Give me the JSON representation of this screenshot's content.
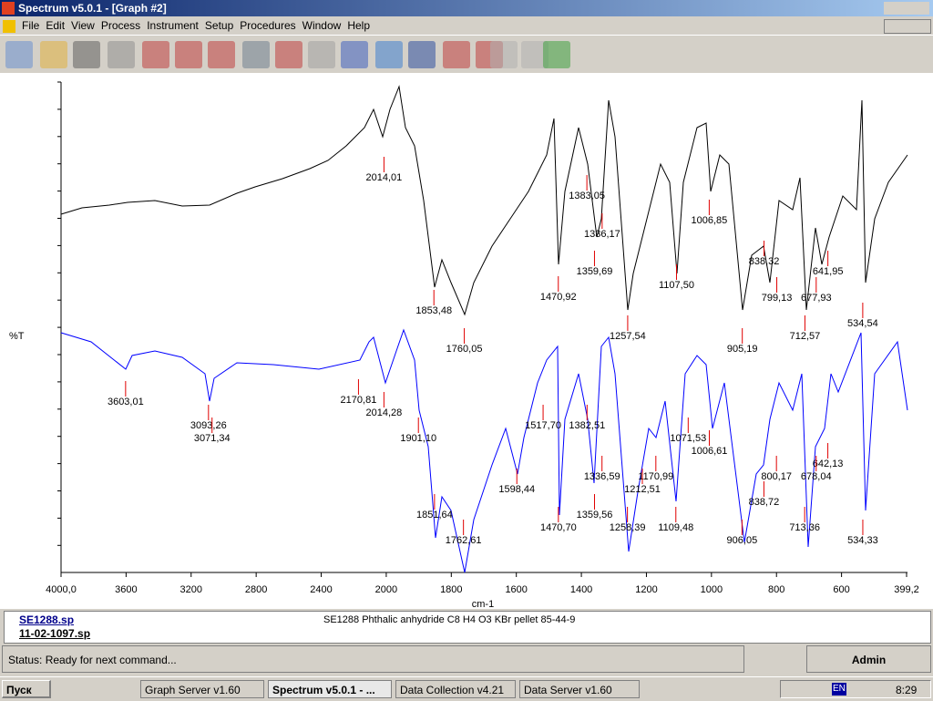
{
  "window": {
    "title": "Spectrum v5.0.1 - [Graph #2]"
  },
  "menu": [
    "File",
    "Edit",
    "View",
    "Process",
    "Instrument",
    "Setup",
    "Procedures",
    "Window",
    "Help"
  ],
  "chart_data": {
    "type": "line",
    "y_label": "%T",
    "x_label": "cm-1",
    "xlim": [
      4000,
      399.2
    ],
    "xticks": [
      {
        "value": 4000,
        "label": "4000,0"
      },
      3600,
      3200,
      2800,
      2400,
      2000,
      1800,
      1600,
      1400,
      1200,
      1000,
      800,
      600,
      {
        "value": 399.2,
        "label": "399,2"
      }
    ],
    "series": [
      {
        "color": "#000000",
        "peaks": [
          {
            "value": 2014.01,
            "label": "2014,01"
          },
          {
            "value": 1853.48,
            "label": "1853,48"
          },
          {
            "value": 1760.05,
            "label": "1760,05"
          },
          {
            "value": 1470.92,
            "label": "1470,92"
          },
          {
            "value": 1383.05,
            "label": "1383,05"
          },
          {
            "value": 1336.17,
            "label": "1336,17"
          },
          {
            "value": 1359.69,
            "label": "1359,69"
          },
          {
            "value": 1257.54,
            "label": "1257,54"
          },
          {
            "value": 1107.5,
            "label": "1107,50"
          },
          {
            "value": 1006.85,
            "label": "1006,85"
          },
          {
            "value": 905.19,
            "label": "905,19"
          },
          {
            "value": 838.32,
            "label": "838,32"
          },
          {
            "value": 799.13,
            "label": "799,13"
          },
          {
            "value": 677.93,
            "label": "677,93"
          },
          {
            "value": 641.95,
            "label": "641,95"
          },
          {
            "value": 712.57,
            "label": "712,57"
          },
          {
            "value": 534.54,
            "label": "534,54"
          }
        ]
      },
      {
        "color": "#0000ff",
        "peaks": [
          {
            "value": 3603.01,
            "label": "3603,01"
          },
          {
            "value": 3093.26,
            "label": "3093,26"
          },
          {
            "value": 3071.34,
            "label": "3071,34"
          },
          {
            "value": 2170.81,
            "label": "2170,81"
          },
          {
            "value": 2014.28,
            "label": "2014,28"
          },
          {
            "value": 1901.1,
            "label": "1901,10"
          },
          {
            "value": 1517.7,
            "label": "1517,70"
          },
          {
            "value": 1382.51,
            "label": "1382,51"
          },
          {
            "value": 1598.44,
            "label": "1598,44"
          },
          {
            "value": 1071.53,
            "label": "1071,53"
          },
          {
            "value": 1006.61,
            "label": "1006,61"
          },
          {
            "value": 1336.59,
            "label": "1336,59"
          },
          {
            "value": 1170.99,
            "label": "1170,99"
          },
          {
            "value": 800.17,
            "label": "800,17"
          },
          {
            "value": 642.13,
            "label": "642,13"
          },
          {
            "value": 678.04,
            "label": "678,04"
          },
          {
            "value": 1212.51,
            "label": "1212,51"
          },
          {
            "value": 838.72,
            "label": "838,72"
          },
          {
            "value": 1851.64,
            "label": "1851,64"
          },
          {
            "value": 1470.7,
            "label": "1470,70"
          },
          {
            "value": 1359.56,
            "label": "1359,56"
          },
          {
            "value": 1258.39,
            "label": "1258,39"
          },
          {
            "value": 1109.48,
            "label": "1109,48"
          },
          {
            "value": 1762.61,
            "label": "1762,61"
          },
          {
            "value": 906.05,
            "label": "906,05"
          },
          {
            "value": 713.36,
            "label": "713,36"
          },
          {
            "value": 534.33,
            "label": "534,33"
          }
        ]
      }
    ]
  },
  "files": [
    "SE1288.sp",
    "11-02-1097.sp"
  ],
  "description": "SE1288 Phthalic anhydride C8 H4 O3 KBr pellet 85-44-9",
  "status": "Status: Ready for next command...",
  "user": "Admin",
  "taskbar": {
    "start": "Пуск",
    "tasks": [
      "Graph Server v1.60",
      "Spectrum v5.0.1 - ...",
      "Data Collection v4.21",
      "Data Server v1.60"
    ],
    "lang": "EN",
    "clock": "8:29"
  }
}
